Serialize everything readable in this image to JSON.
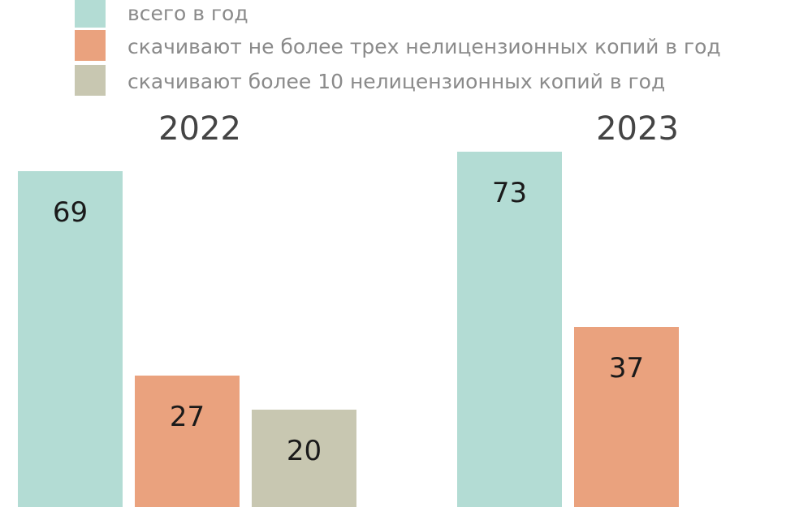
{
  "colors": {
    "total": "#b3dcd4",
    "up_to_three": "#eaa27e",
    "more_than_ten": "#c8c7b1"
  },
  "chart_data": {
    "type": "bar",
    "title": "",
    "xlabel": "",
    "ylabel": "",
    "categories": [
      "2022",
      "2023"
    ],
    "series": [
      {
        "name": "всего в год",
        "values": [
          69,
          73
        ]
      },
      {
        "name": "скачивают не более трех нелицензионных копий в год",
        "values": [
          27,
          37
        ]
      },
      {
        "name": "скачивают более 10 нелицензионных копий в год",
        "values": [
          20,
          null
        ]
      }
    ],
    "ylim": [
      0,
      100
    ],
    "grid": false,
    "legend": "top-left"
  }
}
